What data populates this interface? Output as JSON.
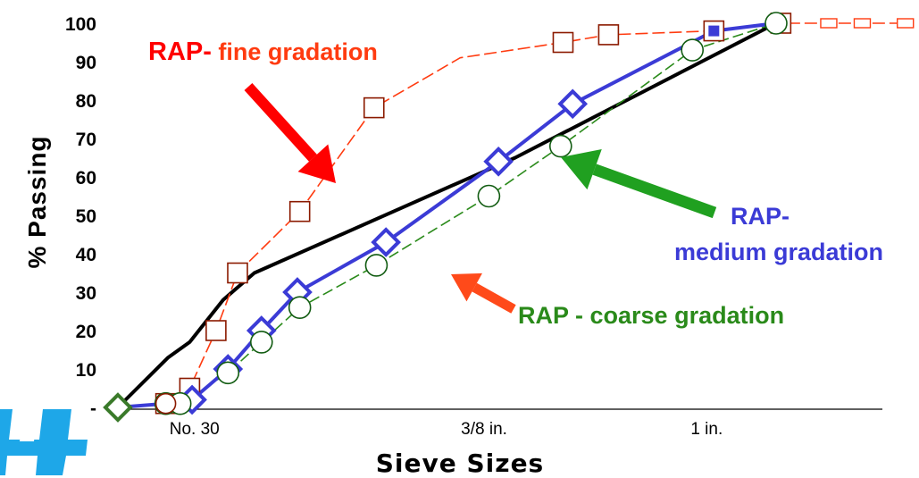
{
  "chart_data": {
    "type": "line",
    "xlabel": "Sieve Sizes",
    "ylabel": "% Passing",
    "yticks": [
      "-",
      "10",
      "20",
      "30",
      "40",
      "50",
      "60",
      "70",
      "80",
      "90",
      "100"
    ],
    "ylim": [
      0,
      100
    ],
    "xtick_labels": [
      {
        "label": "No. 30",
        "x": 3.2
      },
      {
        "label": "3/8 in.",
        "x": 15.3
      },
      {
        "label": "1 in.",
        "x": 24.6
      }
    ],
    "series": [
      {
        "color": "#000000",
        "style": "solid",
        "x": [
          0,
          2.1,
          3.0,
          4.4,
          5.7,
          16.6,
          27.5
        ],
        "y": [
          0,
          13,
          17,
          28,
          35,
          65,
          100
        ]
      },
      {
        "name": "RAP- fine gradation",
        "color": "#ff3b10",
        "style": "dashed",
        "marker": "square",
        "x": [
          2.0,
          3.0,
          4.1,
          5.0,
          7.6,
          10.7,
          14.3,
          18.6,
          20.5,
          24.9,
          27.7,
          29.7,
          31.1,
          32.9
        ],
        "y": [
          1,
          5,
          20,
          35,
          51,
          78,
          91,
          95,
          97,
          98,
          100,
          100,
          100,
          100
        ]
      },
      {
        "name": "RAP- medium gradation",
        "color": "#3b3bd6",
        "style": "solid",
        "marker": "diamond",
        "x": [
          0,
          2.0,
          3.1,
          4.6,
          6.0,
          7.5,
          11.2,
          15.9,
          19.0,
          24.9,
          27.5
        ],
        "y": [
          0,
          1,
          2,
          10,
          20,
          30,
          43,
          64,
          79,
          98,
          100
        ]
      },
      {
        "name": "RAP - coarse gradation",
        "color": "#2a8a1a",
        "style": "dashed",
        "marker": "circle",
        "x": [
          0,
          2.0,
          2.6,
          4.6,
          6.0,
          7.6,
          10.8,
          15.5,
          18.5,
          24.0,
          27.5
        ],
        "y": [
          0,
          1,
          1,
          9,
          17,
          26,
          37,
          55,
          68,
          93,
          100
        ]
      }
    ],
    "annotations": [
      {
        "text_red": "RAP-",
        "text": " fine gradation",
        "color": "#ff3b10"
      },
      {
        "line1": "RAP-",
        "line2": "medium gradation",
        "color": "#3b3bd6"
      },
      {
        "text": "RAP  - coarse gradation",
        "color": "#2a8a1a"
      }
    ],
    "arrows": [
      {
        "color": "#ff0000",
        "points_to": "RAP- fine gradation"
      },
      {
        "color": "#20a020",
        "points_to": "RAP- medium gradation"
      },
      {
        "color": "#ff4a1a",
        "points_to": "RAP - coarse gradation"
      }
    ]
  },
  "logo": {
    "name": "cross-logo",
    "color": "#1ea7e8"
  }
}
